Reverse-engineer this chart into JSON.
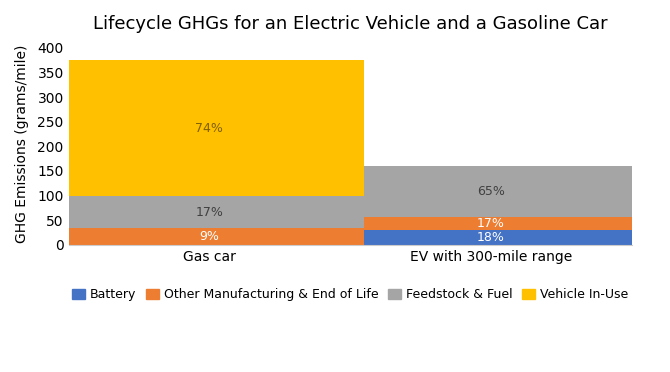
{
  "title": "Lifecycle GHGs for an Electric Vehicle and a Gasoline Car",
  "ylabel": "GHG Emissions (grams/mile)",
  "categories": [
    "Gas car",
    "EV with 300-mile range"
  ],
  "segments": {
    "Battery": {
      "values": [
        0,
        29
      ],
      "color": "#4472C4",
      "label": "Battery"
    },
    "Other Manufacturing & End of Life": {
      "values": [
        34,
        27
      ],
      "color": "#ED7D31",
      "label": "Other Manufacturing & End of Life"
    },
    "Feedstock & Fuel": {
      "values": [
        64,
        104
      ],
      "color": "#A5A5A5",
      "label": "Feedstock & Fuel"
    },
    "Vehicle In-Use": {
      "values": [
        278,
        0
      ],
      "color": "#FFC000",
      "label": "Vehicle In-Use"
    }
  },
  "pct_labels": {
    "Gas car": {
      "Other Manufacturing & End of Life": {
        "text": "9%",
        "color": "#FFFFFF"
      },
      "Feedstock & Fuel": {
        "text": "17%",
        "color": "#404040"
      },
      "Vehicle In-Use": {
        "text": "74%",
        "color": "#7F6000"
      }
    },
    "EV with 300-mile range": {
      "Battery": {
        "text": "18%",
        "color": "#FFFFFF"
      },
      "Other Manufacturing & End of Life": {
        "text": "17%",
        "color": "#FFFFFF"
      },
      "Feedstock & Fuel": {
        "text": "65%",
        "color": "#404040"
      }
    }
  },
  "ylim": [
    0,
    410
  ],
  "yticks": [
    0,
    50,
    100,
    150,
    200,
    250,
    300,
    350,
    400
  ],
  "background_color": "#ffffff",
  "bar_width": 0.55,
  "title_fontsize": 13,
  "axis_fontsize": 10,
  "legend_fontsize": 9,
  "label_fontsize": 9,
  "x_positions": [
    0.25,
    0.75
  ]
}
